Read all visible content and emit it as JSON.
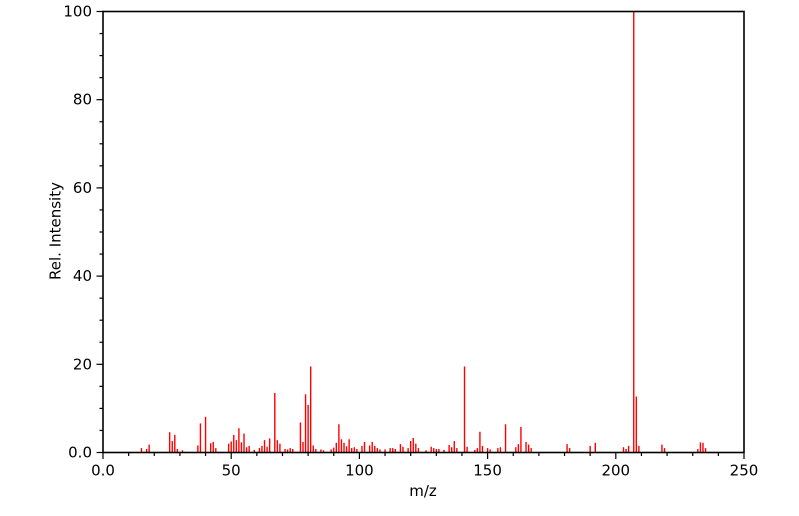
{
  "chart_data": {
    "type": "stem",
    "subtype": "mass-spectrum",
    "title": "",
    "xlabel": "m/z",
    "ylabel": "Rel. Intensity",
    "xlim": [
      0,
      250
    ],
    "ylim": [
      0,
      100
    ],
    "grid": false,
    "legend": null,
    "peak_color": "#ff0000",
    "axis_color": "#000000",
    "x_major_ticks": [
      {
        "value": 0,
        "label": "0.0"
      },
      {
        "value": 50,
        "label": "50"
      },
      {
        "value": 100,
        "label": "100"
      },
      {
        "value": 150,
        "label": "150"
      },
      {
        "value": 200,
        "label": "200"
      },
      {
        "value": 250,
        "label": "250"
      }
    ],
    "y_major_ticks": [
      {
        "value": 0,
        "label": "0.0"
      },
      {
        "value": 20,
        "label": "20"
      },
      {
        "value": 40,
        "label": "40"
      },
      {
        "value": 60,
        "label": "60"
      },
      {
        "value": 80,
        "label": "80"
      },
      {
        "value": 100,
        "label": "100"
      }
    ],
    "x_minor_step": 10,
    "y_minor_step": 5,
    "base_peak": {
      "mz": 207,
      "intensity": 100
    },
    "peaks": [
      [
        15,
        1.0
      ],
      [
        17,
        0.8
      ],
      [
        18,
        1.8
      ],
      [
        26,
        4.6
      ],
      [
        27,
        2.6
      ],
      [
        28,
        4.0
      ],
      [
        29,
        0.8
      ],
      [
        31,
        0.5
      ],
      [
        37,
        1.6
      ],
      [
        38,
        6.6
      ],
      [
        40,
        8.1
      ],
      [
        42,
        2.1
      ],
      [
        43,
        2.4
      ],
      [
        44,
        1.0
      ],
      [
        49,
        2.0
      ],
      [
        50,
        2.5
      ],
      [
        51,
        4.0
      ],
      [
        52,
        2.8
      ],
      [
        53,
        5.5
      ],
      [
        54,
        2.3
      ],
      [
        55,
        4.3
      ],
      [
        56,
        1.2
      ],
      [
        57,
        1.5
      ],
      [
        59,
        0.6
      ],
      [
        61,
        1.0
      ],
      [
        62,
        1.5
      ],
      [
        63,
        2.8
      ],
      [
        64,
        1.3
      ],
      [
        65,
        3.2
      ],
      [
        67,
        13.5
      ],
      [
        68,
        2.8
      ],
      [
        69,
        2.0
      ],
      [
        71,
        0.8
      ],
      [
        72,
        0.7
      ],
      [
        73,
        1.0
      ],
      [
        74,
        0.8
      ],
      [
        77,
        6.8
      ],
      [
        78,
        2.4
      ],
      [
        79,
        13.2
      ],
      [
        80,
        10.8
      ],
      [
        81,
        19.5
      ],
      [
        82,
        1.6
      ],
      [
        83,
        0.8
      ],
      [
        85,
        0.7
      ],
      [
        86,
        0.5
      ],
      [
        89,
        0.7
      ],
      [
        90,
        1.1
      ],
      [
        91,
        2.2
      ],
      [
        92,
        6.4
      ],
      [
        93,
        3.0
      ],
      [
        94,
        2.2
      ],
      [
        95,
        1.4
      ],
      [
        96,
        3.0
      ],
      [
        97,
        1.0
      ],
      [
        98,
        1.2
      ],
      [
        99,
        0.8
      ],
      [
        101,
        1.5
      ],
      [
        102,
        2.4
      ],
      [
        104,
        1.6
      ],
      [
        105,
        2.4
      ],
      [
        106,
        1.5
      ],
      [
        107,
        1.0
      ],
      [
        108,
        0.7
      ],
      [
        110,
        0.7
      ],
      [
        112,
        1.0
      ],
      [
        113,
        1.0
      ],
      [
        114,
        0.8
      ],
      [
        116,
        1.9
      ],
      [
        117,
        1.3
      ],
      [
        119,
        1.0
      ],
      [
        120,
        2.6
      ],
      [
        121,
        3.3
      ],
      [
        122,
        2.0
      ],
      [
        123,
        1.0
      ],
      [
        126,
        0.5
      ],
      [
        128,
        1.3
      ],
      [
        129,
        1.0
      ],
      [
        130,
        0.8
      ],
      [
        131,
        0.8
      ],
      [
        133,
        0.6
      ],
      [
        135,
        1.7
      ],
      [
        136,
        1.2
      ],
      [
        137,
        2.6
      ],
      [
        138,
        1.0
      ],
      [
        141,
        19.5
      ],
      [
        142,
        1.3
      ],
      [
        145,
        0.6
      ],
      [
        146,
        1.0
      ],
      [
        147,
        4.7
      ],
      [
        148,
        1.5
      ],
      [
        150,
        1.0
      ],
      [
        151,
        0.7
      ],
      [
        154,
        1.0
      ],
      [
        155,
        1.2
      ],
      [
        157,
        6.4
      ],
      [
        161,
        1.2
      ],
      [
        162,
        1.9
      ],
      [
        163,
        5.8
      ],
      [
        165,
        2.4
      ],
      [
        166,
        1.8
      ],
      [
        167,
        1.0
      ],
      [
        181,
        1.9
      ],
      [
        182,
        1.0
      ],
      [
        190,
        1.5
      ],
      [
        192,
        2.2
      ],
      [
        203,
        1.2
      ],
      [
        204,
        0.8
      ],
      [
        205,
        1.5
      ],
      [
        207,
        100.0
      ],
      [
        208,
        12.7
      ],
      [
        209,
        1.5
      ],
      [
        218,
        1.8
      ],
      [
        219,
        1.0
      ],
      [
        232,
        0.8
      ],
      [
        233,
        2.3
      ],
      [
        234,
        2.2
      ],
      [
        235,
        1.0
      ]
    ]
  }
}
